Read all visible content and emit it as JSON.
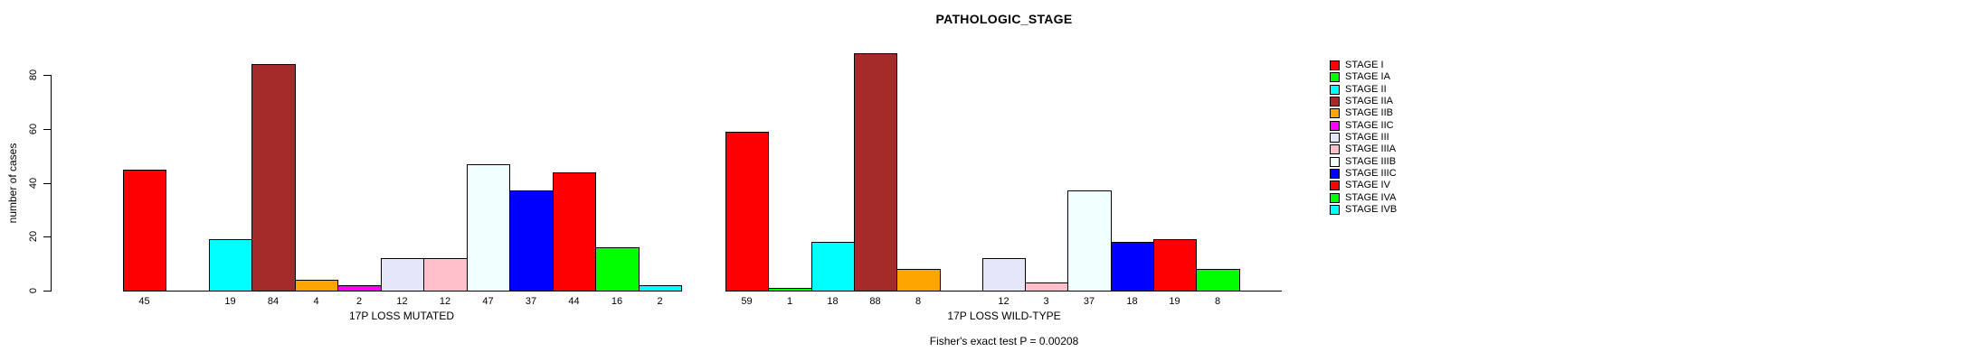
{
  "figure": {
    "background": "#ffffff"
  },
  "chart_data": {
    "type": "bar",
    "title": "PATHOLOGIC_STAGE",
    "ylabel": "number of cases",
    "ylim": [
      0,
      80
    ],
    "yticks": [
      0,
      20,
      40,
      60,
      80
    ],
    "grid": false,
    "legend_position": "right",
    "categories": [
      "STAGE I",
      "STAGE IA",
      "STAGE II",
      "STAGE IIA",
      "STAGE IIB",
      "STAGE IIC",
      "STAGE III",
      "STAGE IIIA",
      "STAGE IIIB",
      "STAGE IIIC",
      "STAGE IV",
      "STAGE IVA",
      "STAGE IVB"
    ],
    "palette": [
      "#FF0000",
      "#00FF00",
      "#00FFFF",
      "#A52A2A",
      "#FFA500",
      "#FF00FF",
      "#E6E6FA",
      "#FFC0CB",
      "#F0FFFF",
      "#0000FF",
      "#FF0000",
      "#00FF00",
      "#00FFFF"
    ],
    "series": [
      {
        "name": "17P LOSS MUTATED",
        "values": [
          45,
          null,
          19,
          84,
          4,
          2,
          12,
          12,
          47,
          37,
          44,
          16,
          2
        ]
      },
      {
        "name": "17P LOSS WILD-TYPE",
        "values": [
          59,
          1,
          18,
          88,
          8,
          null,
          12,
          3,
          37,
          18,
          19,
          8,
          null
        ]
      }
    ],
    "bar_value_labels_shown": true,
    "annotation": "Fisher's exact test P = 0.00208",
    "legend_entries": [
      "STAGE I",
      "STAGE IA",
      "STAGE II",
      "STAGE IIA",
      "STAGE IIB",
      "STAGE IIC",
      "STAGE III",
      "STAGE IIIA",
      "STAGE IIIB",
      "STAGE IIIC",
      "STAGE IV",
      "STAGE IVA",
      "STAGE IVB"
    ]
  }
}
